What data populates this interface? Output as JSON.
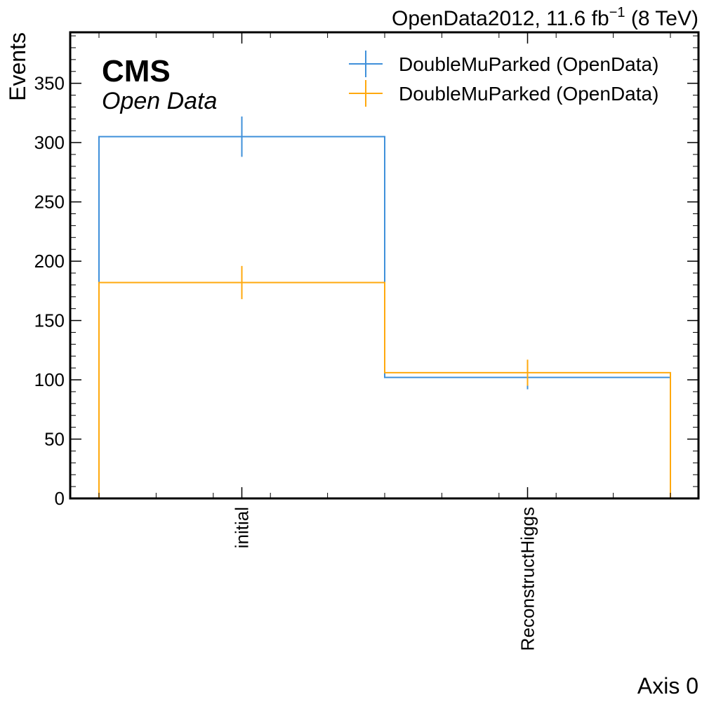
{
  "chart_data": {
    "type": "histogram-step",
    "experiment": "CMS",
    "experiment_sub": "Open Data",
    "lumi_text": {
      "pre": "OpenData2012, 11.6 fb",
      "sup": "−1",
      "post": " (8 TeV)"
    },
    "xlabel": "Axis 0",
    "ylabel": "Events",
    "ylim": [
      0,
      393
    ],
    "yticks": [
      0,
      50,
      100,
      150,
      200,
      250,
      300,
      350
    ],
    "ytick_labels": [
      "0",
      "50",
      "100",
      "150",
      "200",
      "250",
      "300",
      "350"
    ],
    "yminor_step": 10,
    "categories": [
      "initial",
      "ReconstructHiggs"
    ],
    "series": [
      {
        "name": "DoubleMuParked (OpenData)",
        "color": "#3f90da",
        "values": [
          305,
          102
        ],
        "errors": [
          17,
          10
        ]
      },
      {
        "name": "DoubleMuParked (OpenData)",
        "color": "#ffa90e",
        "values": [
          182,
          106
        ],
        "errors": [
          14,
          11
        ]
      }
    ],
    "legend_position": "top-right",
    "grid": false
  }
}
